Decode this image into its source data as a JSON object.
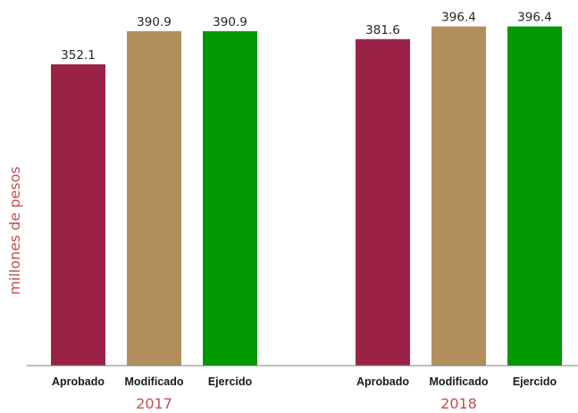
{
  "chart_data": {
    "type": "bar",
    "ylabel": "millones de pesos",
    "ylim": [
      0,
      420
    ],
    "groups": [
      {
        "label": "2017",
        "bars": [
          {
            "category": "Aprobado",
            "value": 352.1,
            "label": "352.1"
          },
          {
            "category": "Modificado",
            "value": 390.9,
            "label": "390.9"
          },
          {
            "category": "Ejercido",
            "value": 390.9,
            "label": "390.9"
          }
        ]
      },
      {
        "label": "2018",
        "bars": [
          {
            "category": "Aprobado",
            "value": 381.6,
            "label": "381.6"
          },
          {
            "category": "Modificado",
            "value": 396.4,
            "label": "396.4"
          },
          {
            "category": "Ejercido",
            "value": 396.4,
            "label": "396.4"
          }
        ]
      }
    ],
    "colors": {
      "Aprobado": "#9b2247",
      "Modificado": "#b38e5d",
      "Ejercido": "#009900"
    },
    "axis_color": "#7f7f7f",
    "label_color": "#c0504d"
  }
}
